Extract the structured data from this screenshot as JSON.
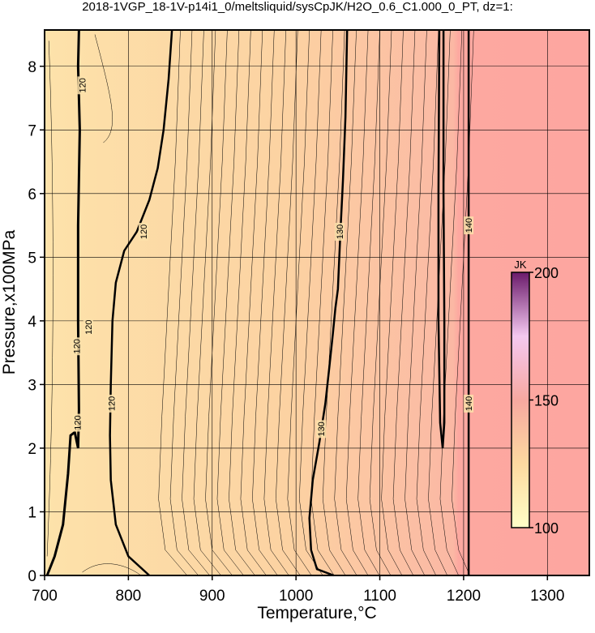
{
  "chart_data": {
    "type": "contour",
    "title": "2018-1VGP_18-1V-p14i1_0/meltsliquid/sysCpJK/H2O_0.6_C1.000_0_PT, dz=1:",
    "x_label": "Temperature,°C",
    "y_label": "Pressure,x100MPa",
    "xlim": [
      700,
      1350
    ],
    "ylim": [
      0,
      8.57
    ],
    "xticks": [
      700,
      800,
      900,
      1000,
      1100,
      1200,
      1300
    ],
    "yticks": [
      0,
      1,
      2,
      3,
      4,
      5,
      6,
      7,
      8
    ],
    "grid": true,
    "colorbar": {
      "label": "JK",
      "lim": [
        100,
        200
      ],
      "ticks": [
        100,
        150,
        200
      ],
      "colors": [
        "#ffffc8",
        "#fdd9a0",
        "#f7a8a0",
        "#f4c8f0",
        "#6a1a6a"
      ]
    },
    "contours": [
      {
        "level": 120,
        "x": [
          703,
          712,
          722,
          728,
          731,
          736,
          740,
          741,
          740,
          740,
          742,
          740,
          741
        ],
        "y": [
          0,
          0.3,
          0.8,
          1.6,
          2.2,
          2.25,
          2.0,
          2.6,
          4.0,
          5.5,
          7.0,
          8.0,
          8.57
        ]
      },
      {
        "level": 120,
        "x": [
          825,
          800,
          785,
          779,
          778,
          779,
          781,
          785,
          795,
          810,
          825,
          835,
          842,
          848,
          852
        ],
        "y": [
          0,
          0.3,
          0.8,
          1.5,
          2.2,
          3.0,
          4.0,
          4.6,
          5.1,
          5.4,
          5.9,
          6.4,
          7.0,
          7.8,
          8.57
        ]
      },
      {
        "level": 130,
        "x": [
          1045,
          1025,
          1018,
          1016,
          1020,
          1028,
          1035,
          1040,
          1044,
          1047,
          1050,
          1053,
          1056,
          1059,
          1061
        ],
        "y": [
          0,
          0.1,
          0.4,
          0.9,
          1.5,
          2.1,
          2.7,
          3.3,
          3.8,
          4.2,
          4.5,
          5.4,
          6.2,
          7.2,
          8.57
        ]
      },
      {
        "level": 140,
        "x": [
          1171,
          1170,
          1170,
          1172,
          1175,
          1177,
          1177,
          1176,
          1176
        ],
        "y": [
          8.57,
          6.0,
          4.0,
          2.4,
          2.0,
          2.4,
          4.0,
          6.0,
          8.57
        ]
      },
      {
        "level": 140,
        "x": [
          1206,
          1206
        ],
        "y": [
          0,
          8.57
        ]
      }
    ]
  }
}
